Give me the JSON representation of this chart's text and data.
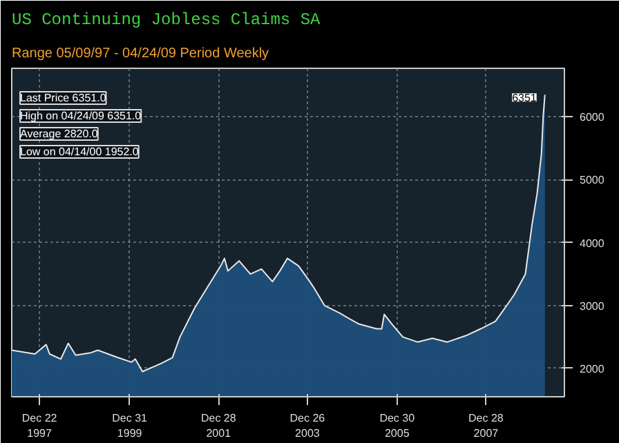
{
  "chart_data": {
    "type": "area",
    "title": "US Continuing Jobless Claims SA",
    "subtitle": "Range 05/09/97 - 04/24/09   Period Weekly",
    "x": [
      "1997-05-09",
      "1997-11",
      "1998-02",
      "1998-03",
      "1998-06",
      "1998-08",
      "1998-10",
      "1999-02",
      "1999-04",
      "1999-09",
      "2000-01",
      "2000-02",
      "2000-04-14",
      "2000-09",
      "2000-12",
      "2001-02",
      "2001-06",
      "2001-09",
      "2002-01",
      "2002-02",
      "2002-03",
      "2002-06",
      "2002-09",
      "2002-12",
      "2003-03",
      "2003-05",
      "2003-07",
      "2003-10",
      "2004-01",
      "2004-02",
      "2004-05",
      "2004-09",
      "2005-02",
      "2005-07",
      "2005-08-26",
      "2005-09-16",
      "2005-11",
      "2006-02",
      "2006-06",
      "2006-10",
      "2007-02",
      "2007-07",
      "2007-11",
      "2008-03",
      "2008-06",
      "2008-08",
      "2008-11",
      "2009-01-09",
      "2009-02-20",
      "2009-03-27",
      "2009-04-10",
      "2009-04-24"
    ],
    "series": [
      {
        "color": "#1d4f7a",
        "values": [
          2290,
          2230,
          2380,
          2230,
          2150,
          2400,
          2210,
          2250,
          2290,
          2180,
          2100,
          2150,
          1950,
          2080,
          2170,
          2500,
          2960,
          3250,
          3630,
          3750,
          3550,
          3710,
          3500,
          3580,
          3380,
          3550,
          3750,
          3630,
          3380,
          3290,
          3000,
          2880,
          2710,
          2630,
          2630,
          2860,
          2710,
          2500,
          2420,
          2480,
          2420,
          2520,
          2630,
          2750,
          3000,
          3170,
          3500,
          4290,
          4790,
          5420,
          6000,
          6351
        ]
      }
    ],
    "xlim": [
      "1997-05-09",
      "2009-10-01"
    ],
    "xticks": [
      {
        "value": "1997-12-22",
        "label": "Dec 22\n1997"
      },
      {
        "value": "1999-12-31",
        "label": "Dec 31\n1999"
      },
      {
        "value": "2001-12-28",
        "label": "Dec 28\n2001"
      },
      {
        "value": "2003-12-26",
        "label": "Dec 26\n2003"
      },
      {
        "value": "2005-12-30",
        "label": "Dec 30\n2005"
      },
      {
        "value": "2007-12-28",
        "label": "Dec 28\n2007"
      }
    ],
    "ylim": [
      1550,
      6770
    ],
    "yticks": [
      2000,
      3000,
      4000,
      5000,
      6000
    ],
    "grid": true,
    "annotations": [
      "Last Price 6351.0",
      "High on 04/24/09 6351.0",
      "Average 2820.0",
      "Low on 04/14/00 1952.0",
      {
        "text": "6351",
        "x": "2009-04-24",
        "y": 6351
      }
    ]
  }
}
